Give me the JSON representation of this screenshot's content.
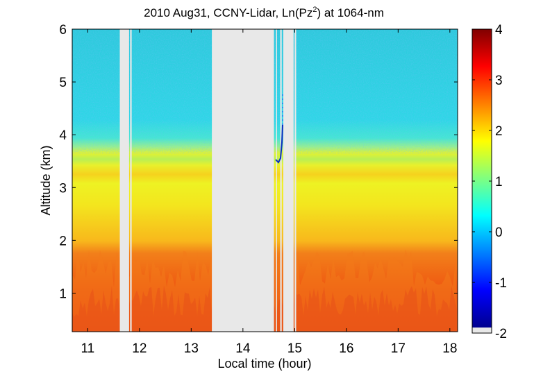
{
  "chart_data": {
    "type": "heatmap",
    "title": "2010 Aug31, CCNY-Lidar, Ln(Pz",
    "title_sup": "2",
    "title_suffix": ") at 1064-nm",
    "xlabel": "Local time (hour)",
    "ylabel": "Altitude (km)",
    "xlim": [
      10.7,
      18.15
    ],
    "ylim": [
      0.27,
      6.0
    ],
    "xticks": [
      11,
      12,
      13,
      14,
      15,
      16,
      17,
      18
    ],
    "yticks": [
      1,
      2,
      3,
      4,
      5,
      6
    ],
    "colorbar": {
      "range": [
        -2,
        4
      ],
      "ticks": [
        -2,
        -1,
        0,
        1,
        2,
        3,
        4
      ],
      "colormap": "jet",
      "nodata_color": "#e8e8e8"
    },
    "grid": false,
    "data_gaps": [
      {
        "x": [
          11.62,
          11.8
        ]
      },
      {
        "x": [
          11.82,
          11.85
        ]
      },
      {
        "x": [
          13.4,
          14.6
        ]
      },
      {
        "x": [
          14.64,
          14.66
        ]
      },
      {
        "x": [
          14.72,
          14.75
        ]
      },
      {
        "x": [
          14.78,
          14.98
        ]
      },
      {
        "x": [
          15.0,
          15.03
        ]
      }
    ],
    "layers": [
      {
        "name": "near-surface aerosol (orange/red)",
        "altitude_km": [
          0.27,
          1.8
        ],
        "value": 2.8
      },
      {
        "name": "mixed layer (yellow)",
        "altitude_km": [
          1.8,
          3.2
        ],
        "value": 1.8
      },
      {
        "name": "boundary layer top (green/yellow)",
        "altitude_km": [
          3.2,
          3.6
        ],
        "value": 1.2
      },
      {
        "name": "free troposphere (cyan)",
        "altitude_km": [
          3.6,
          6.0
        ],
        "value": 0.2
      }
    ]
  }
}
